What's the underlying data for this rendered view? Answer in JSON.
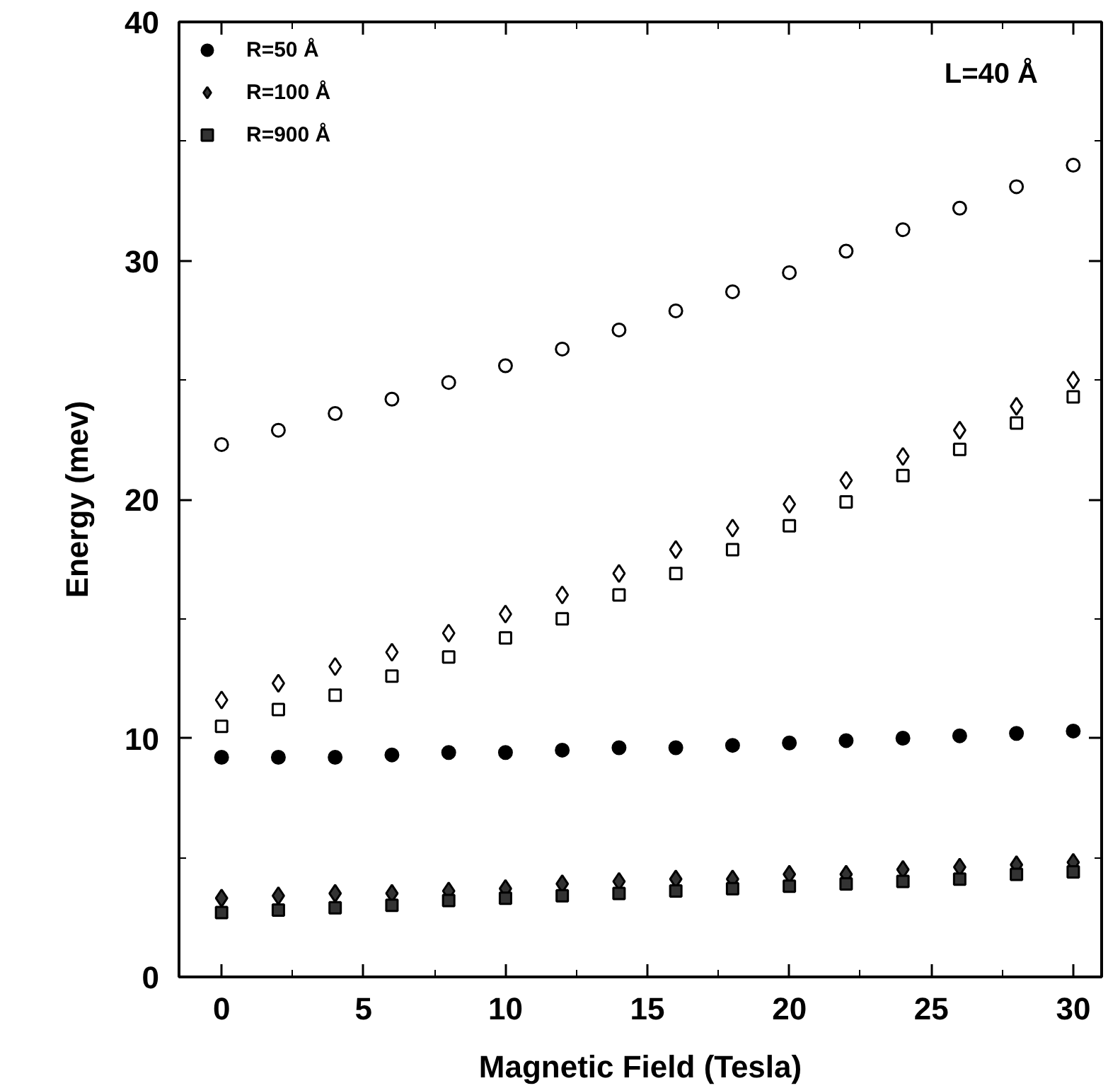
{
  "chart_data": {
    "type": "scatter",
    "xlabel": "Magnetic Field (Tesla)",
    "ylabel": "Energy (mev)",
    "annotations": [
      "L=40 Å"
    ],
    "x": [
      0,
      2,
      4,
      6,
      8,
      10,
      12,
      14,
      16,
      18,
      20,
      22,
      24,
      26,
      28,
      30
    ],
    "xlim": [
      -1.5,
      31
    ],
    "ylim": [
      0,
      40
    ],
    "xticks": [
      0,
      {
        "value": 2.5,
        "label": null
      },
      5,
      {
        "value": 7.5,
        "label": null
      },
      10,
      {
        "value": 12.5,
        "label": null
      },
      15,
      {
        "value": 17.5,
        "label": null
      },
      20,
      {
        "value": 22.5,
        "label": null
      },
      25,
      {
        "value": 27.5,
        "label": null
      },
      30
    ],
    "yticks": [
      0,
      {
        "value": 5,
        "label": null
      },
      10,
      {
        "value": 15,
        "label": null
      },
      20,
      {
        "value": 25,
        "label": null
      },
      30,
      {
        "value": 35,
        "label": null
      },
      40
    ],
    "grid": false,
    "legend": "top left",
    "series": [
      {
        "name": "R=50 Å",
        "color": "#000000",
        "marker": "circle",
        "values": [
          9.2,
          9.2,
          9.2,
          9.3,
          9.4,
          9.4,
          9.5,
          9.6,
          9.6,
          9.7,
          9.8,
          9.9,
          10.0,
          10.1,
          10.2,
          10.3
        ]
      },
      {
        "color": "#ffffff",
        "marker": "circle",
        "values": [
          22.3,
          22.9,
          23.6,
          24.2,
          24.9,
          25.6,
          26.3,
          27.1,
          27.9,
          28.7,
          29.5,
          30.4,
          31.3,
          32.2,
          33.1,
          34.0
        ]
      },
      {
        "name": "R=100 Å",
        "color": "#333333",
        "marker": "diamond",
        "values": [
          3.3,
          3.4,
          3.5,
          3.5,
          3.6,
          3.7,
          3.9,
          4.0,
          4.1,
          4.1,
          4.3,
          4.3,
          4.5,
          4.6,
          4.7,
          4.8
        ]
      },
      {
        "color": "#ffffff",
        "marker": "diamond",
        "values": [
          11.6,
          12.3,
          13.0,
          13.6,
          14.4,
          15.2,
          16.0,
          16.9,
          17.9,
          18.8,
          19.8,
          20.8,
          21.8,
          22.9,
          23.9,
          25.0
        ]
      },
      {
        "name": "R=900 Å",
        "color": "#333333",
        "marker": "square",
        "values": [
          2.7,
          2.8,
          2.9,
          3.0,
          3.2,
          3.3,
          3.4,
          3.5,
          3.6,
          3.7,
          3.8,
          3.9,
          4.0,
          4.1,
          4.3,
          4.4
        ]
      },
      {
        "color": "#ffffff",
        "marker": "square",
        "values": [
          10.5,
          11.2,
          11.8,
          12.6,
          13.4,
          14.2,
          15.0,
          16.0,
          16.9,
          17.9,
          18.9,
          19.9,
          21.0,
          22.1,
          23.2,
          24.3
        ]
      }
    ]
  }
}
